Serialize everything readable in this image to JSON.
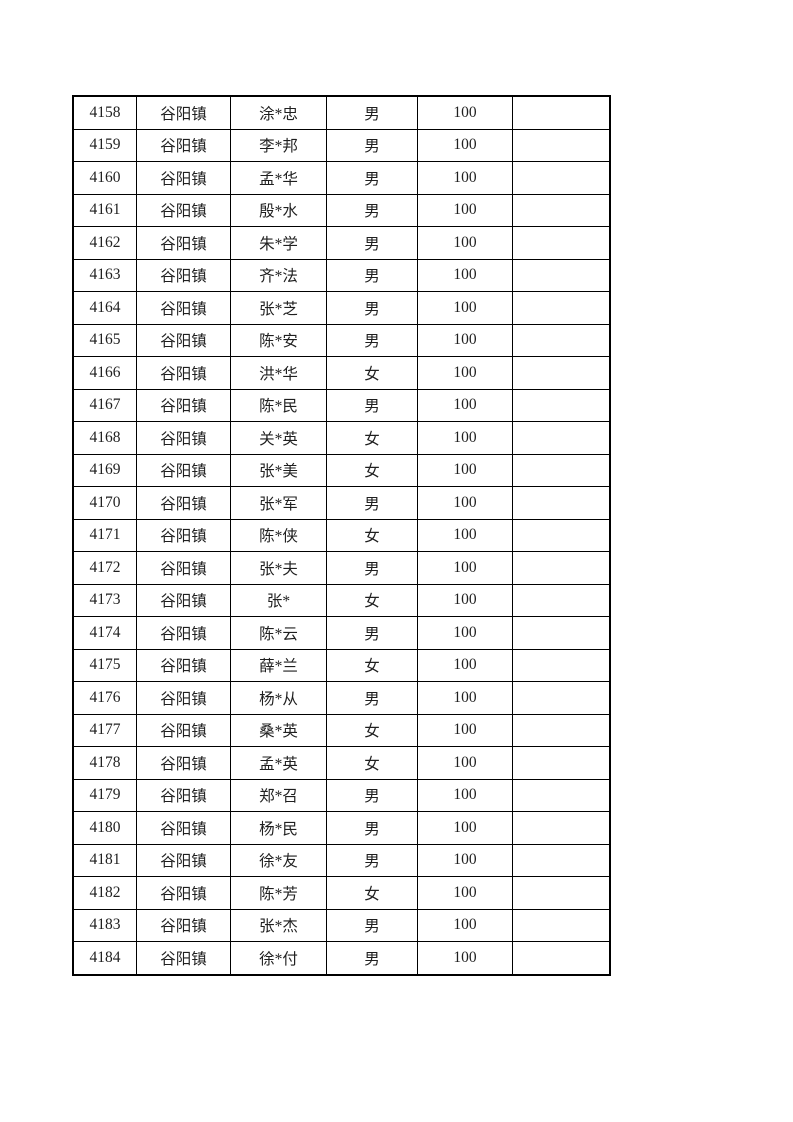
{
  "colors": {
    "page_background": "#ffffff",
    "table_border": "#000000",
    "text": "#1f1f1f"
  },
  "table": {
    "column_keys": [
      "seq",
      "town",
      "name",
      "gender",
      "amount",
      "note"
    ],
    "rows": [
      {
        "seq": "4158",
        "town": "谷阳镇",
        "name": "涂*忠",
        "gender": "男",
        "amount": "100",
        "note": ""
      },
      {
        "seq": "4159",
        "town": "谷阳镇",
        "name": "李*邦",
        "gender": "男",
        "amount": "100",
        "note": ""
      },
      {
        "seq": "4160",
        "town": "谷阳镇",
        "name": "孟*华",
        "gender": "男",
        "amount": "100",
        "note": ""
      },
      {
        "seq": "4161",
        "town": "谷阳镇",
        "name": "殷*水",
        "gender": "男",
        "amount": "100",
        "note": ""
      },
      {
        "seq": "4162",
        "town": "谷阳镇",
        "name": "朱*学",
        "gender": "男",
        "amount": "100",
        "note": ""
      },
      {
        "seq": "4163",
        "town": "谷阳镇",
        "name": "齐*法",
        "gender": "男",
        "amount": "100",
        "note": ""
      },
      {
        "seq": "4164",
        "town": "谷阳镇",
        "name": "张*芝",
        "gender": "男",
        "amount": "100",
        "note": ""
      },
      {
        "seq": "4165",
        "town": "谷阳镇",
        "name": "陈*安",
        "gender": "男",
        "amount": "100",
        "note": ""
      },
      {
        "seq": "4166",
        "town": "谷阳镇",
        "name": "洪*华",
        "gender": "女",
        "amount": "100",
        "note": ""
      },
      {
        "seq": "4167",
        "town": "谷阳镇",
        "name": "陈*民",
        "gender": "男",
        "amount": "100",
        "note": ""
      },
      {
        "seq": "4168",
        "town": "谷阳镇",
        "name": "关*英",
        "gender": "女",
        "amount": "100",
        "note": ""
      },
      {
        "seq": "4169",
        "town": "谷阳镇",
        "name": "张*美",
        "gender": "女",
        "amount": "100",
        "note": ""
      },
      {
        "seq": "4170",
        "town": "谷阳镇",
        "name": "张*军",
        "gender": "男",
        "amount": "100",
        "note": ""
      },
      {
        "seq": "4171",
        "town": "谷阳镇",
        "name": "陈*侠",
        "gender": "女",
        "amount": "100",
        "note": ""
      },
      {
        "seq": "4172",
        "town": "谷阳镇",
        "name": "张*夫",
        "gender": "男",
        "amount": "100",
        "note": ""
      },
      {
        "seq": "4173",
        "town": "谷阳镇",
        "name": "张*",
        "gender": "女",
        "amount": "100",
        "note": ""
      },
      {
        "seq": "4174",
        "town": "谷阳镇",
        "name": "陈*云",
        "gender": "男",
        "amount": "100",
        "note": ""
      },
      {
        "seq": "4175",
        "town": "谷阳镇",
        "name": "薛*兰",
        "gender": "女",
        "amount": "100",
        "note": ""
      },
      {
        "seq": "4176",
        "town": "谷阳镇",
        "name": "杨*从",
        "gender": "男",
        "amount": "100",
        "note": ""
      },
      {
        "seq": "4177",
        "town": "谷阳镇",
        "name": "桑*英",
        "gender": "女",
        "amount": "100",
        "note": ""
      },
      {
        "seq": "4178",
        "town": "谷阳镇",
        "name": "孟*英",
        "gender": "女",
        "amount": "100",
        "note": ""
      },
      {
        "seq": "4179",
        "town": "谷阳镇",
        "name": "郑*召",
        "gender": "男",
        "amount": "100",
        "note": ""
      },
      {
        "seq": "4180",
        "town": "谷阳镇",
        "name": "杨*民",
        "gender": "男",
        "amount": "100",
        "note": ""
      },
      {
        "seq": "4181",
        "town": "谷阳镇",
        "name": "徐*友",
        "gender": "男",
        "amount": "100",
        "note": ""
      },
      {
        "seq": "4182",
        "town": "谷阳镇",
        "name": "陈*芳",
        "gender": "女",
        "amount": "100",
        "note": ""
      },
      {
        "seq": "4183",
        "town": "谷阳镇",
        "name": "张*杰",
        "gender": "男",
        "amount": "100",
        "note": ""
      },
      {
        "seq": "4184",
        "town": "谷阳镇",
        "name": "徐*付",
        "gender": "男",
        "amount": "100",
        "note": ""
      }
    ]
  }
}
